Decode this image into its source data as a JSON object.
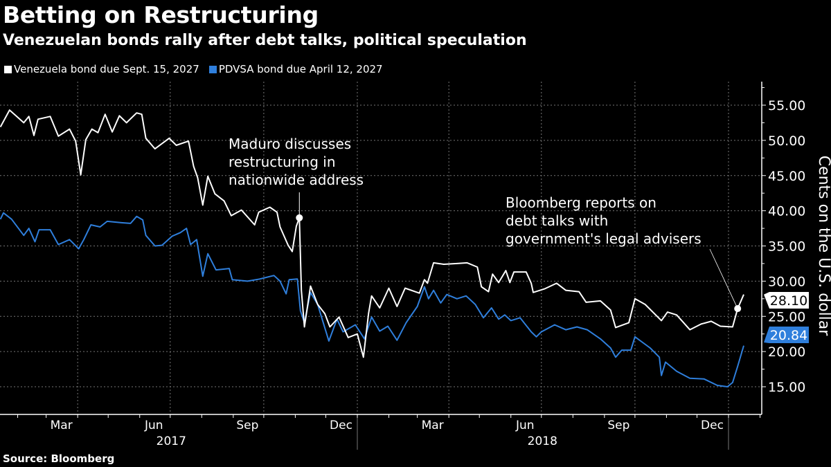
{
  "header": {
    "title": "Betting on Restructuring",
    "subtitle": "Venezuelan bonds rally after debt talks, political speculation"
  },
  "footer": {
    "source": "Source: Bloomberg"
  },
  "chart_data": {
    "type": "line",
    "title": "Betting on Restructuring",
    "subtitle": "Venezuelan bonds rally after debt talks, political speculation",
    "ylabel": "Cents on the U.S. dollar",
    "xlabel": "",
    "ylim": [
      13,
      57
    ],
    "yticks": [
      "15.00",
      "20.00",
      "25.00",
      "30.00",
      "35.00",
      "40.00",
      "45.00",
      "50.00",
      "55.00"
    ],
    "ytick_values": [
      15,
      20,
      25,
      30,
      35,
      40,
      45,
      50,
      55
    ],
    "xlim": [
      "2016-12-14",
      "2019-01-30"
    ],
    "xtick_months": [
      {
        "label": "Mar",
        "date": "2017-03-16"
      },
      {
        "label": "Jun",
        "date": "2017-06-15"
      },
      {
        "label": "Sep",
        "date": "2017-09-15"
      },
      {
        "label": "Dec",
        "date": "2017-12-16"
      },
      {
        "label": "Mar",
        "date": "2018-03-16"
      },
      {
        "label": "Jun",
        "date": "2018-06-15"
      },
      {
        "label": "Sep",
        "date": "2018-09-15"
      },
      {
        "label": "Dec",
        "date": "2018-12-16"
      }
    ],
    "xtick_years": [
      {
        "label": "2017",
        "date": "2017-07-02"
      },
      {
        "label": "2018",
        "date": "2018-07-02"
      }
    ],
    "grid": true,
    "y_axis_side": "right",
    "legend": "top-left",
    "series": [
      {
        "name": "Venezuela bond due Sept. 15, 2027",
        "color": "#ffffff",
        "last_value_label": "28.10",
        "points": [
          [
            "2017-01-15",
            51.9
          ],
          [
            "2017-01-24",
            54.3
          ],
          [
            "2017-01-31",
            53.4
          ],
          [
            "2017-02-07",
            52.5
          ],
          [
            "2017-02-12",
            53.4
          ],
          [
            "2017-02-17",
            50.7
          ],
          [
            "2017-02-21",
            53.0
          ],
          [
            "2017-03-05",
            53.4
          ],
          [
            "2017-03-13",
            50.6
          ],
          [
            "2017-03-24",
            51.6
          ],
          [
            "2017-03-30",
            49.9
          ],
          [
            "2017-04-04",
            45.1
          ],
          [
            "2017-04-09",
            50.1
          ],
          [
            "2017-04-15",
            51.6
          ],
          [
            "2017-04-21",
            51.1
          ],
          [
            "2017-04-28",
            53.7
          ],
          [
            "2017-05-05",
            51.2
          ],
          [
            "2017-05-12",
            53.5
          ],
          [
            "2017-05-19",
            52.5
          ],
          [
            "2017-05-29",
            53.9
          ],
          [
            "2017-06-03",
            53.7
          ],
          [
            "2017-06-07",
            50.3
          ],
          [
            "2017-06-16",
            48.8
          ],
          [
            "2017-06-30",
            50.3
          ],
          [
            "2017-07-07",
            49.3
          ],
          [
            "2017-07-19",
            49.9
          ],
          [
            "2017-07-24",
            46.3
          ],
          [
            "2017-07-28",
            44.7
          ],
          [
            "2017-08-02",
            40.8
          ],
          [
            "2017-08-07",
            44.9
          ],
          [
            "2017-08-14",
            42.4
          ],
          [
            "2017-08-23",
            41.4
          ],
          [
            "2017-08-30",
            39.3
          ],
          [
            "2017-09-09",
            40.1
          ],
          [
            "2017-09-22",
            38.0
          ],
          [
            "2017-09-26",
            39.8
          ],
          [
            "2017-10-07",
            40.5
          ],
          [
            "2017-10-14",
            39.8
          ],
          [
            "2017-10-17",
            37.7
          ],
          [
            "2017-10-25",
            35.1
          ],
          [
            "2017-10-29",
            34.2
          ],
          [
            "2017-11-02",
            37.8
          ],
          [
            "2017-11-05",
            39.0
          ],
          [
            "2017-11-07",
            28.7
          ],
          [
            "2017-11-10",
            23.5
          ],
          [
            "2017-11-16",
            29.3
          ],
          [
            "2017-11-23",
            26.7
          ],
          [
            "2017-11-30",
            25.4
          ],
          [
            "2017-12-05",
            23.5
          ],
          [
            "2017-12-14",
            24.9
          ],
          [
            "2017-12-23",
            22.0
          ],
          [
            "2018-01-01",
            22.5
          ],
          [
            "2018-01-07",
            19.2
          ],
          [
            "2018-01-12",
            25.4
          ],
          [
            "2018-01-15",
            27.9
          ],
          [
            "2018-01-23",
            26.2
          ],
          [
            "2018-02-01",
            29.0
          ],
          [
            "2018-02-09",
            26.4
          ],
          [
            "2018-02-17",
            29.0
          ],
          [
            "2018-03-03",
            28.3
          ],
          [
            "2018-03-08",
            30.2
          ],
          [
            "2018-03-11",
            29.7
          ],
          [
            "2018-03-17",
            32.6
          ],
          [
            "2018-03-27",
            32.4
          ],
          [
            "2018-04-09",
            32.5
          ],
          [
            "2018-04-19",
            32.6
          ],
          [
            "2018-04-29",
            32.0
          ],
          [
            "2018-05-03",
            29.2
          ],
          [
            "2018-05-10",
            28.5
          ],
          [
            "2018-05-14",
            31.0
          ],
          [
            "2018-05-20",
            29.8
          ],
          [
            "2018-05-27",
            31.5
          ],
          [
            "2018-05-31",
            29.8
          ],
          [
            "2018-06-04",
            31.3
          ],
          [
            "2018-06-16",
            31.3
          ],
          [
            "2018-06-21",
            29.7
          ],
          [
            "2018-06-23",
            28.4
          ],
          [
            "2018-07-04",
            28.9
          ],
          [
            "2018-07-16",
            29.7
          ],
          [
            "2018-07-25",
            28.7
          ],
          [
            "2018-08-07",
            28.5
          ],
          [
            "2018-08-14",
            27.0
          ],
          [
            "2018-08-28",
            27.2
          ],
          [
            "2018-09-07",
            25.9
          ],
          [
            "2018-09-12",
            23.4
          ],
          [
            "2018-09-25",
            24.1
          ],
          [
            "2018-10-01",
            27.5
          ],
          [
            "2018-10-11",
            26.7
          ],
          [
            "2018-10-27",
            24.4
          ],
          [
            "2018-11-02",
            25.6
          ],
          [
            "2018-11-11",
            25.2
          ],
          [
            "2018-11-24",
            23.1
          ],
          [
            "2018-12-05",
            23.9
          ],
          [
            "2018-12-15",
            24.3
          ],
          [
            "2018-12-24",
            23.6
          ],
          [
            "2019-01-05",
            23.5
          ],
          [
            "2019-01-10",
            26.1
          ],
          [
            "2019-01-16",
            28.1
          ]
        ]
      },
      {
        "name": "PDVSA bond due April 12, 2027",
        "color": "#2f7fdc",
        "last_value_label": "20.84",
        "points": [
          [
            "2017-01-15",
            38.8
          ],
          [
            "2017-01-18",
            39.7
          ],
          [
            "2017-01-26",
            38.8
          ],
          [
            "2017-02-07",
            36.5
          ],
          [
            "2017-02-12",
            37.5
          ],
          [
            "2017-02-18",
            35.6
          ],
          [
            "2017-02-22",
            37.3
          ],
          [
            "2017-03-05",
            37.3
          ],
          [
            "2017-03-13",
            35.2
          ],
          [
            "2017-03-24",
            35.9
          ],
          [
            "2017-04-02",
            34.6
          ],
          [
            "2017-04-07",
            35.9
          ],
          [
            "2017-04-14",
            38.0
          ],
          [
            "2017-04-23",
            37.7
          ],
          [
            "2017-04-30",
            38.5
          ],
          [
            "2017-05-14",
            38.3
          ],
          [
            "2017-05-23",
            38.2
          ],
          [
            "2017-05-29",
            39.2
          ],
          [
            "2017-06-04",
            38.7
          ],
          [
            "2017-06-07",
            36.5
          ],
          [
            "2017-06-16",
            35.0
          ],
          [
            "2017-06-23",
            35.1
          ],
          [
            "2017-07-03",
            36.4
          ],
          [
            "2017-07-11",
            36.9
          ],
          [
            "2017-07-17",
            37.5
          ],
          [
            "2017-07-21",
            35.2
          ],
          [
            "2017-07-27",
            35.9
          ],
          [
            "2017-08-02",
            30.7
          ],
          [
            "2017-08-07",
            33.9
          ],
          [
            "2017-08-15",
            31.6
          ],
          [
            "2017-08-28",
            31.8
          ],
          [
            "2017-08-31",
            30.2
          ],
          [
            "2017-09-15",
            30.0
          ],
          [
            "2017-09-27",
            30.3
          ],
          [
            "2017-10-11",
            30.8
          ],
          [
            "2017-10-17",
            30.0
          ],
          [
            "2017-10-23",
            28.2
          ],
          [
            "2017-10-26",
            30.2
          ],
          [
            "2017-11-03",
            30.3
          ],
          [
            "2017-11-06",
            25.8
          ],
          [
            "2017-11-10",
            24.1
          ],
          [
            "2017-11-16",
            28.4
          ],
          [
            "2017-11-23",
            26.7
          ],
          [
            "2017-12-04",
            21.5
          ],
          [
            "2017-12-12",
            24.6
          ],
          [
            "2017-12-18",
            22.8
          ],
          [
            "2017-12-30",
            23.8
          ],
          [
            "2018-01-08",
            21.8
          ],
          [
            "2018-01-15",
            24.9
          ],
          [
            "2018-01-23",
            22.9
          ],
          [
            "2018-01-31",
            23.6
          ],
          [
            "2018-02-09",
            21.6
          ],
          [
            "2018-02-18",
            24.1
          ],
          [
            "2018-03-01",
            26.4
          ],
          [
            "2018-03-08",
            29.2
          ],
          [
            "2018-03-12",
            27.5
          ],
          [
            "2018-03-17",
            28.7
          ],
          [
            "2018-03-24",
            26.9
          ],
          [
            "2018-03-30",
            28.1
          ],
          [
            "2018-04-09",
            27.5
          ],
          [
            "2018-04-18",
            27.9
          ],
          [
            "2018-04-27",
            26.7
          ],
          [
            "2018-05-05",
            24.8
          ],
          [
            "2018-05-13",
            26.2
          ],
          [
            "2018-05-20",
            24.6
          ],
          [
            "2018-05-26",
            25.2
          ],
          [
            "2018-06-01",
            24.4
          ],
          [
            "2018-06-10",
            24.8
          ],
          [
            "2018-06-21",
            22.8
          ],
          [
            "2018-06-26",
            22.1
          ],
          [
            "2018-07-01",
            22.8
          ],
          [
            "2018-07-14",
            23.8
          ],
          [
            "2018-07-25",
            23.1
          ],
          [
            "2018-08-05",
            23.5
          ],
          [
            "2018-08-15",
            23.1
          ],
          [
            "2018-08-28",
            21.8
          ],
          [
            "2018-09-07",
            20.5
          ],
          [
            "2018-09-12",
            19.2
          ],
          [
            "2018-09-18",
            20.2
          ],
          [
            "2018-09-27",
            20.2
          ],
          [
            "2018-10-01",
            22.1
          ],
          [
            "2018-10-16",
            20.5
          ],
          [
            "2018-10-25",
            19.2
          ],
          [
            "2018-10-27",
            16.6
          ],
          [
            "2018-10-31",
            18.5
          ],
          [
            "2018-11-11",
            17.2
          ],
          [
            "2018-11-24",
            16.2
          ],
          [
            "2018-12-08",
            16.1
          ],
          [
            "2018-12-21",
            15.2
          ],
          [
            "2018-12-31",
            15.0
          ],
          [
            "2019-01-05",
            15.6
          ],
          [
            "2019-01-10",
            17.9
          ],
          [
            "2019-01-16",
            20.84
          ]
        ]
      }
    ],
    "annotations": [
      {
        "lines": [
          "Maduro discusses",
          "restructuring in",
          "nationwide address"
        ],
        "date": "2017-11-05",
        "value": 39.0
      },
      {
        "lines": [
          "Bloomberg reports on",
          "debt talks with",
          "government's legal advisers"
        ],
        "date": "2019-01-10",
        "value": 26.1
      }
    ]
  }
}
